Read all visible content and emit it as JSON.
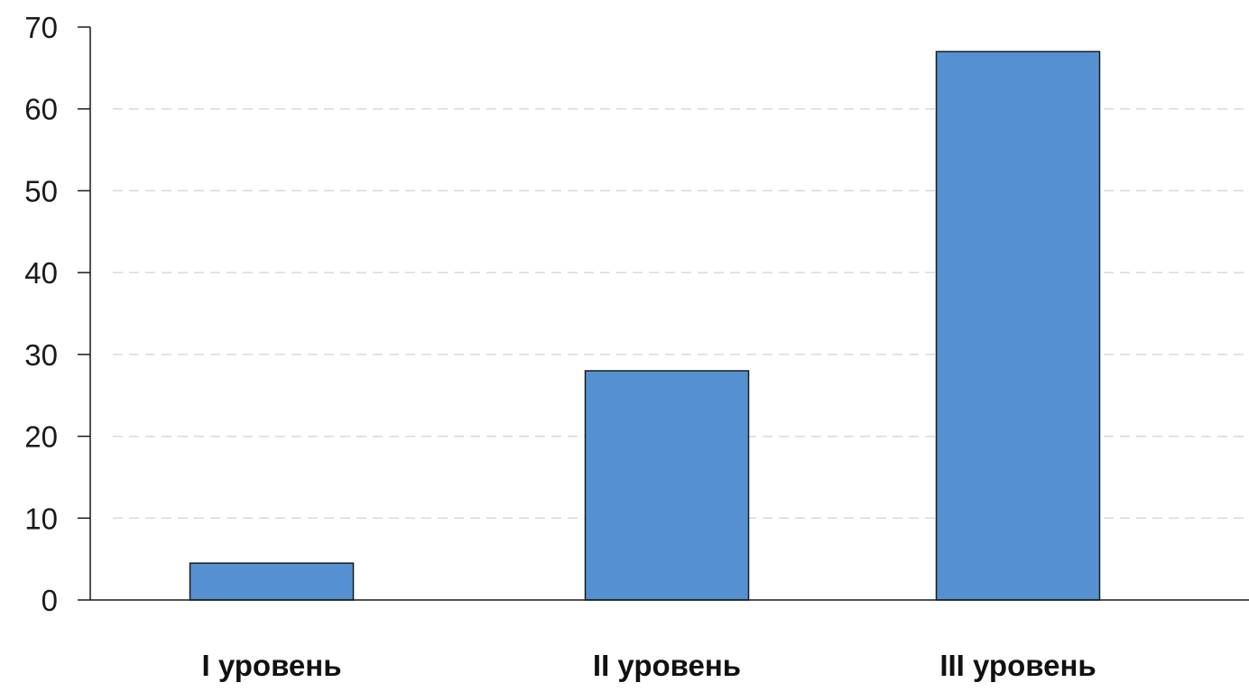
{
  "chart_data": {
    "type": "bar",
    "title": "",
    "xlabel": "",
    "ylabel": "",
    "categories": [
      "I уровень",
      "II уровень",
      "III уровень"
    ],
    "values": [
      4.5,
      28,
      67
    ],
    "ylim": [
      0,
      70
    ],
    "yticks": [
      0,
      10,
      20,
      30,
      40,
      50,
      60,
      70
    ],
    "grid": "horizontal-dashed",
    "legend": "none",
    "colors": {
      "bar_fill": "#5591d0",
      "bar_stroke": "#1a1a1a",
      "grid": "#d9d9d9",
      "axis": "#1a1a1a"
    }
  }
}
